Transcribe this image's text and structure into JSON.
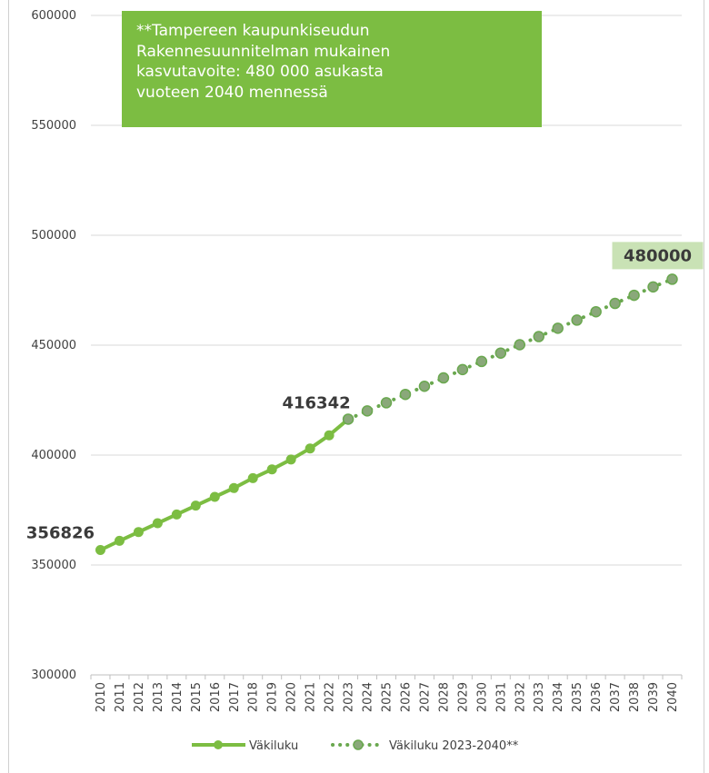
{
  "chart_data": {
    "type": "line",
    "title": "",
    "xlabel": "",
    "ylabel": "",
    "ylim": [
      300000,
      600000
    ],
    "yticks": [
      300000,
      350000,
      400000,
      450000,
      500000,
      550000,
      600000
    ],
    "grid": true,
    "legend_position": "bottom",
    "categories": [
      "2010",
      "2011",
      "2012",
      "2013",
      "2014",
      "2015",
      "2016",
      "2017",
      "2018",
      "2019",
      "2020",
      "2021",
      "2022",
      "2023",
      "2024",
      "2025",
      "2026",
      "2027",
      "2028",
      "2029",
      "2030",
      "2031",
      "2032",
      "2033",
      "2034",
      "2035",
      "2036",
      "2037",
      "2038",
      "2039",
      "2040"
    ],
    "series": [
      {
        "name": "Väkiluku",
        "style": "solid",
        "color": "#7cbd42",
        "values": [
          356826,
          361000,
          365000,
          369000,
          373000,
          377000,
          381000,
          385000,
          389500,
          393500,
          398000,
          403000,
          409000,
          416342,
          null,
          null,
          null,
          null,
          null,
          null,
          null,
          null,
          null,
          null,
          null,
          null,
          null,
          null,
          null,
          null,
          null
        ]
      },
      {
        "name": "Väkiluku 2023-2040**",
        "style": "dotted",
        "color": "#6aa84f",
        "values": [
          null,
          null,
          null,
          null,
          null,
          null,
          null,
          null,
          null,
          null,
          null,
          null,
          null,
          416342,
          420100,
          423800,
          427600,
          431300,
          435100,
          438900,
          442600,
          446400,
          450200,
          453900,
          457700,
          461400,
          465200,
          469000,
          472700,
          476500,
          480000
        ]
      }
    ],
    "data_labels": [
      {
        "category": "2010",
        "text": "356826"
      },
      {
        "category": "2023",
        "text": "416342"
      },
      {
        "category": "2040",
        "text": "480000",
        "highlight": "#c9e2b5"
      }
    ],
    "annotation": {
      "lines": [
        "**Tampereen kaupunkiseudun",
        "Rakennesuunnitelman mukainen",
        "kasvutavoite: 480 000 asukasta",
        "vuoteen 2040 mennessä"
      ],
      "background": "#7cbd42"
    }
  }
}
